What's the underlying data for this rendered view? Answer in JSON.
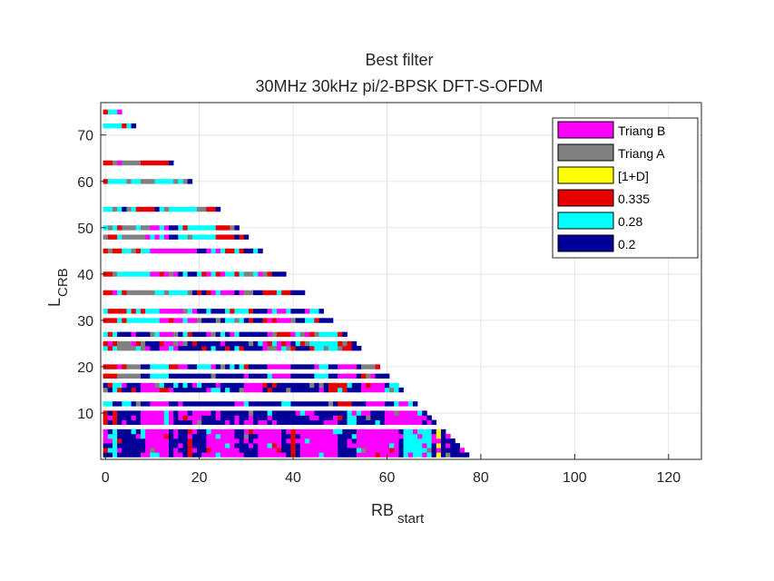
{
  "chart_data": {
    "type": "heatmap",
    "title_line1": "Best filter",
    "title_line2": "30MHz 30kHz pi/2-BPSK DFT-S-OFDM",
    "xlabel": "RB",
    "xlabel_sub": "start",
    "ylabel": "L",
    "ylabel_sub": "CRB",
    "xlim": [
      -1,
      127
    ],
    "ylim": [
      0,
      77
    ],
    "xticks": [
      0,
      20,
      40,
      60,
      80,
      100,
      120
    ],
    "yticks": [
      10,
      20,
      30,
      40,
      50,
      60,
      70
    ],
    "grid": true,
    "legend_position": "top-right",
    "legend": [
      {
        "label": "Triang B",
        "color": "#ff00ff"
      },
      {
        "label": "Triang A",
        "color": "#808080"
      },
      {
        "label": "[1+D]",
        "color": "#ffff00"
      },
      {
        "label": "0.335",
        "color": "#e60000"
      },
      {
        "label": "0.28",
        "color": "#00ffff"
      },
      {
        "label": "0.2",
        "color": "#000099"
      }
    ],
    "L_values": [
      1,
      2,
      3,
      4,
      5,
      6,
      8,
      9,
      10,
      12,
      15,
      16,
      18,
      20,
      24,
      25,
      27,
      30,
      32,
      36,
      40,
      45,
      48,
      50,
      54,
      60,
      64,
      72,
      75
    ],
    "L_max_start": [
      77,
      76,
      75,
      74,
      73,
      72,
      70,
      69,
      68,
      66,
      63,
      62,
      60,
      58,
      54,
      53,
      51,
      48,
      46,
      42,
      38,
      33,
      30,
      28,
      24,
      18,
      14,
      6,
      3
    ],
    "category_legend_index_note": "cells encode legend index 0-5",
    "blocks": [
      {
        "L": [
          1,
          6
        ],
        "segments": [
          [
            0,
            77,
            5
          ],
          [
            9,
            14,
            0
          ],
          [
            18,
            19,
            3
          ],
          [
            22,
            28,
            0
          ],
          [
            33,
            38,
            0
          ],
          [
            42,
            50,
            0
          ],
          [
            54,
            63,
            0
          ],
          [
            71,
            72,
            2
          ],
          [
            64,
            70,
            4
          ],
          [
            2,
            3,
            4
          ],
          [
            40,
            41,
            3
          ]
        ]
      },
      {
        "L": [
          8,
          10
        ],
        "segments": [
          [
            0,
            70,
            5
          ],
          [
            2,
            3,
            3
          ],
          [
            8,
            15,
            0
          ],
          [
            19,
            21,
            0
          ],
          [
            52,
            54,
            4
          ],
          [
            60,
            68,
            0
          ],
          [
            0,
            1,
            3
          ],
          [
            13,
            14,
            4
          ]
        ]
      },
      {
        "L": [
          12,
          12
        ],
        "segments": [
          [
            0,
            66,
            5
          ],
          [
            0,
            2,
            4
          ],
          [
            10,
            14,
            0
          ],
          [
            28,
            30,
            0
          ],
          [
            50,
            53,
            3
          ],
          [
            56,
            60,
            0
          ],
          [
            62,
            66,
            4
          ]
        ]
      },
      {
        "L": [
          15,
          16
        ],
        "segments": [
          [
            0,
            63,
            5
          ],
          [
            2,
            4,
            4
          ],
          [
            8,
            12,
            0
          ],
          [
            30,
            34,
            0
          ],
          [
            48,
            52,
            3
          ],
          [
            55,
            60,
            0
          ],
          [
            61,
            63,
            4
          ]
        ]
      },
      {
        "L": [
          18,
          20
        ],
        "segments": [
          [
            0,
            60,
            5
          ],
          [
            0,
            3,
            3
          ],
          [
            3,
            8,
            1
          ],
          [
            10,
            14,
            4
          ],
          [
            35,
            40,
            0
          ],
          [
            46,
            48,
            4
          ],
          [
            50,
            54,
            0
          ],
          [
            55,
            58,
            1
          ]
        ]
      },
      {
        "L": [
          24,
          25
        ],
        "segments": [
          [
            0,
            54,
            5
          ],
          [
            0,
            3,
            4
          ],
          [
            3,
            9,
            1
          ],
          [
            12,
            16,
            0
          ],
          [
            34,
            40,
            0
          ],
          [
            44,
            50,
            4
          ],
          [
            50,
            53,
            3
          ]
        ]
      },
      {
        "L": [
          27,
          27
        ],
        "segments": [
          [
            0,
            51,
            5
          ],
          [
            0,
            2,
            3
          ],
          [
            12,
            16,
            0
          ],
          [
            35,
            42,
            0
          ],
          [
            44,
            48,
            4
          ]
        ]
      },
      {
        "L": [
          30,
          32
        ],
        "segments": [
          [
            0,
            48,
            5
          ],
          [
            0,
            5,
            3
          ],
          [
            5,
            12,
            4
          ],
          [
            12,
            20,
            0
          ],
          [
            26,
            30,
            4
          ],
          [
            35,
            40,
            0
          ],
          [
            43,
            46,
            4
          ]
        ]
      },
      {
        "L": [
          36,
          36
        ],
        "segments": [
          [
            0,
            42,
            5
          ],
          [
            0,
            5,
            3
          ],
          [
            5,
            12,
            1
          ],
          [
            12,
            18,
            4
          ],
          [
            22,
            28,
            0
          ],
          [
            34,
            40,
            3
          ]
        ]
      },
      {
        "L": [
          40,
          40
        ],
        "segments": [
          [
            0,
            38,
            5
          ],
          [
            0,
            2,
            3
          ],
          [
            2,
            10,
            4
          ],
          [
            10,
            16,
            0
          ],
          [
            20,
            28,
            4
          ],
          [
            30,
            36,
            1
          ]
        ]
      },
      {
        "L": [
          45,
          45
        ],
        "segments": [
          [
            0,
            33,
            5
          ],
          [
            0,
            4,
            3
          ],
          [
            4,
            10,
            4
          ],
          [
            10,
            20,
            0
          ],
          [
            22,
            26,
            4
          ],
          [
            26,
            30,
            3
          ]
        ]
      },
      {
        "L": [
          48,
          50
        ],
        "segments": [
          [
            0,
            30,
            5
          ],
          [
            0,
            4,
            4
          ],
          [
            4,
            10,
            1
          ],
          [
            10,
            14,
            0
          ],
          [
            16,
            24,
            4
          ],
          [
            24,
            28,
            3
          ]
        ]
      },
      {
        "L": [
          54,
          54
        ],
        "segments": [
          [
            0,
            24,
            5
          ],
          [
            0,
            4,
            4
          ],
          [
            6,
            10,
            3
          ],
          [
            12,
            18,
            4
          ],
          [
            18,
            22,
            1
          ]
        ]
      },
      {
        "L": [
          60,
          60
        ],
        "segments": [
          [
            0,
            18,
            5
          ],
          [
            0,
            2,
            3
          ],
          [
            2,
            8,
            4
          ],
          [
            8,
            12,
            1
          ],
          [
            12,
            18,
            4
          ]
        ]
      },
      {
        "L": [
          64,
          64
        ],
        "segments": [
          [
            0,
            14,
            5
          ],
          [
            0,
            2,
            3
          ],
          [
            2,
            8,
            1
          ],
          [
            8,
            14,
            3
          ]
        ]
      },
      {
        "L": [
          72,
          72
        ],
        "segments": [
          [
            0,
            6,
            4
          ]
        ]
      },
      {
        "L": [
          75,
          75
        ],
        "segments": [
          [
            0,
            3,
            3
          ]
        ]
      }
    ]
  }
}
